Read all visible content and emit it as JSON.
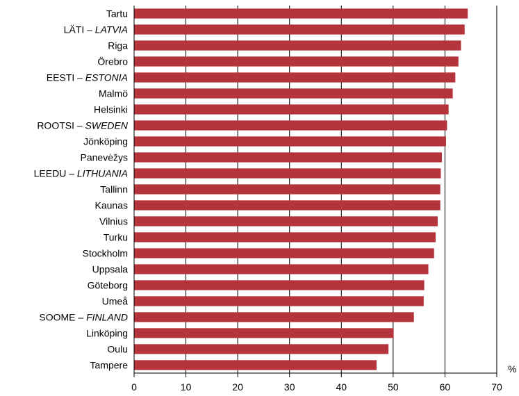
{
  "chart_data": {
    "type": "bar",
    "orientation": "horizontal",
    "categories": [
      {
        "label": "Tartu",
        "italic": ""
      },
      {
        "label": "LÄTI – ",
        "italic": "LATVIA"
      },
      {
        "label": "Riga",
        "italic": ""
      },
      {
        "label": "Örebro",
        "italic": ""
      },
      {
        "label": "EESTI – ",
        "italic": "ESTONIA"
      },
      {
        "label": "Malmö",
        "italic": ""
      },
      {
        "label": "Helsinki",
        "italic": ""
      },
      {
        "label": "ROOTSI – ",
        "italic": "SWEDEN"
      },
      {
        "label": "Jönköping",
        "italic": ""
      },
      {
        "label": "Panevėžys",
        "italic": ""
      },
      {
        "label": "LEEDU – ",
        "italic": "LITHUANIA"
      },
      {
        "label": "Tallinn",
        "italic": ""
      },
      {
        "label": "Kaunas",
        "italic": ""
      },
      {
        "label": "Vilnius",
        "italic": ""
      },
      {
        "label": "Turku",
        "italic": ""
      },
      {
        "label": "Stockholm",
        "italic": ""
      },
      {
        "label": "Uppsala",
        "italic": ""
      },
      {
        "label": "Göteborg",
        "italic": ""
      },
      {
        "label": "Umeå",
        "italic": ""
      },
      {
        "label": "SOOME – ",
        "italic": "FINLAND"
      },
      {
        "label": "Linköping",
        "italic": ""
      },
      {
        "label": "Oulu",
        "italic": ""
      },
      {
        "label": "Tampere",
        "italic": ""
      }
    ],
    "values": [
      64.4,
      63.8,
      63.1,
      62.6,
      62.0,
      61.5,
      60.7,
      60.4,
      60.2,
      59.4,
      59.2,
      59.1,
      59.1,
      58.6,
      58.2,
      57.9,
      56.8,
      56.0,
      55.9,
      54.0,
      50.1,
      49.1,
      46.8
    ],
    "xlim": [
      0,
      70
    ],
    "xticks": [
      "0",
      "10",
      "20",
      "30",
      "40",
      "50",
      "60",
      "70"
    ],
    "unit": "%",
    "grid": "vertical",
    "colors": {
      "bar": "#b5333b",
      "grid": "#000000",
      "axis": "#000000"
    }
  }
}
